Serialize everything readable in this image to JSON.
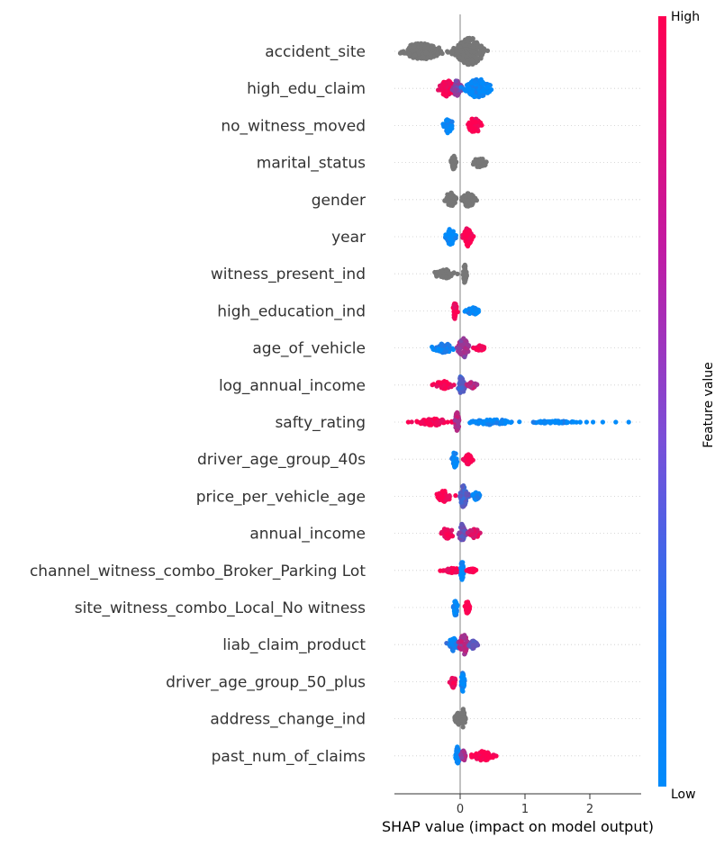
{
  "chart_data": {
    "type": "scatter",
    "subtype": "shap-beeswarm",
    "xlabel": "SHAP value (impact on model output)",
    "xticks": [
      0,
      1,
      2
    ],
    "xlim": [
      -1.0,
      2.8
    ],
    "colorbar": {
      "label": "Feature value",
      "high_label": "High",
      "low_label": "Low",
      "high_color": "#ff0052",
      "low_color": "#008bfb"
    },
    "neutral_color": "#777777",
    "features": [
      {
        "name": "accident_site",
        "colored": false,
        "clusters": [
          {
            "c": -0.6,
            "w": 0.5,
            "h": 0.6,
            "v": null
          },
          {
            "c": 0.15,
            "w": 0.35,
            "h": 1.0,
            "v": null
          }
        ]
      },
      {
        "name": "high_edu_claim",
        "colored": true,
        "clusters": [
          {
            "c": -0.2,
            "w": 0.18,
            "h": 0.6,
            "v": 1.0
          },
          {
            "c": -0.05,
            "w": 0.1,
            "h": 0.6,
            "v": 0.5
          },
          {
            "c": 0.28,
            "w": 0.3,
            "h": 0.7,
            "v": 0.0
          }
        ]
      },
      {
        "name": "no_witness_moved",
        "colored": true,
        "clusters": [
          {
            "c": -0.18,
            "w": 0.1,
            "h": 0.6,
            "v": 0.0
          },
          {
            "c": 0.22,
            "w": 0.15,
            "h": 0.6,
            "v": 1.0
          }
        ]
      },
      {
        "name": "marital_status",
        "colored": false,
        "clusters": [
          {
            "c": -0.1,
            "w": 0.06,
            "h": 0.5,
            "v": null
          },
          {
            "c": 0.3,
            "w": 0.18,
            "h": 0.35,
            "v": null
          }
        ]
      },
      {
        "name": "gender",
        "colored": false,
        "clusters": [
          {
            "c": -0.15,
            "w": 0.14,
            "h": 0.55,
            "v": null
          },
          {
            "c": 0.13,
            "w": 0.15,
            "h": 0.55,
            "v": null
          }
        ]
      },
      {
        "name": "year",
        "colored": true,
        "clusters": [
          {
            "c": -0.15,
            "w": 0.12,
            "h": 0.6,
            "v": 0.0
          },
          {
            "c": 0.12,
            "w": 0.1,
            "h": 0.7,
            "v": 1.0
          }
        ]
      },
      {
        "name": "witness_present_ind",
        "colored": false,
        "clusters": [
          {
            "c": -0.25,
            "w": 0.25,
            "h": 0.35,
            "v": null
          },
          {
            "c": 0.07,
            "w": 0.05,
            "h": 0.7,
            "v": null
          }
        ]
      },
      {
        "name": "high_education_ind",
        "colored": true,
        "clusters": [
          {
            "c": -0.08,
            "w": 0.05,
            "h": 0.6,
            "v": 1.0
          },
          {
            "c": 0.2,
            "w": 0.15,
            "h": 0.3,
            "v": 0.0
          }
        ]
      },
      {
        "name": "age_of_vehicle",
        "colored": true,
        "clusters": [
          {
            "c": -0.25,
            "w": 0.25,
            "h": 0.35,
            "v": 0.05
          },
          {
            "c": 0.05,
            "w": 0.12,
            "h": 0.8,
            "v": 0.6
          },
          {
            "c": 0.3,
            "w": 0.12,
            "h": 0.2,
            "v": 0.95
          }
        ]
      },
      {
        "name": "log_annual_income",
        "colored": true,
        "clusters": [
          {
            "c": -0.25,
            "w": 0.2,
            "h": 0.35,
            "v": 1.0
          },
          {
            "c": 0.02,
            "w": 0.08,
            "h": 0.7,
            "v": 0.3
          },
          {
            "c": 0.18,
            "w": 0.1,
            "h": 0.25,
            "v": 0.7
          }
        ]
      },
      {
        "name": "safty_rating",
        "colored": true,
        "clusters": [
          {
            "c": -0.4,
            "w": 0.38,
            "h": 0.25,
            "v": 1.0
          },
          {
            "c": -0.05,
            "w": 0.05,
            "h": 0.8,
            "v": 0.7
          },
          {
            "c": 0.5,
            "w": 0.5,
            "h": 0.2,
            "v": 0.0
          },
          {
            "c": 1.4,
            "w": 0.5,
            "h": 0.1,
            "v": 0.0
          }
        ]
      },
      {
        "name": "driver_age_group_40s",
        "colored": true,
        "clusters": [
          {
            "c": -0.08,
            "w": 0.05,
            "h": 0.7,
            "v": 0.0
          },
          {
            "c": 0.12,
            "w": 0.1,
            "h": 0.4,
            "v": 1.0
          }
        ]
      },
      {
        "name": "price_per_vehicle_age",
        "colored": true,
        "clusters": [
          {
            "c": -0.25,
            "w": 0.2,
            "h": 0.4,
            "v": 1.0
          },
          {
            "c": 0.05,
            "w": 0.1,
            "h": 0.8,
            "v": 0.3
          },
          {
            "c": 0.25,
            "w": 0.1,
            "h": 0.3,
            "v": 0.0
          }
        ]
      },
      {
        "name": "annual_income",
        "colored": true,
        "clusters": [
          {
            "c": -0.2,
            "w": 0.15,
            "h": 0.45,
            "v": 0.9
          },
          {
            "c": 0.03,
            "w": 0.08,
            "h": 0.7,
            "v": 0.4
          },
          {
            "c": 0.22,
            "w": 0.14,
            "h": 0.35,
            "v": 0.85
          }
        ]
      },
      {
        "name": "channel_witness_combo_Broker_Parking Lot",
        "colored": true,
        "clusters": [
          {
            "c": -0.12,
            "w": 0.2,
            "h": 0.2,
            "v": 1.0
          },
          {
            "c": 0.03,
            "w": 0.04,
            "h": 0.7,
            "v": 0.0
          },
          {
            "c": 0.18,
            "w": 0.1,
            "h": 0.15,
            "v": 1.0
          }
        ]
      },
      {
        "name": "site_witness_combo_Local_No witness",
        "colored": true,
        "clusters": [
          {
            "c": -0.07,
            "w": 0.04,
            "h": 0.7,
            "v": 0.0
          },
          {
            "c": 0.11,
            "w": 0.06,
            "h": 0.45,
            "v": 1.0
          }
        ]
      },
      {
        "name": "liab_claim_product",
        "colored": true,
        "clusters": [
          {
            "c": -0.1,
            "w": 0.15,
            "h": 0.5,
            "v": 0.1
          },
          {
            "c": 0.05,
            "w": 0.1,
            "h": 0.8,
            "v": 0.7
          },
          {
            "c": 0.2,
            "w": 0.1,
            "h": 0.3,
            "v": 0.4
          }
        ]
      },
      {
        "name": "driver_age_group_50_plus",
        "colored": true,
        "clusters": [
          {
            "c": -0.11,
            "w": 0.06,
            "h": 0.45,
            "v": 1.0
          },
          {
            "c": 0.04,
            "w": 0.04,
            "h": 0.75,
            "v": 0.0
          }
        ]
      },
      {
        "name": "address_change_ind",
        "colored": false,
        "clusters": [
          {
            "c": -0.03,
            "w": 0.08,
            "h": 0.45,
            "v": null
          },
          {
            "c": 0.05,
            "w": 0.05,
            "h": 0.75,
            "v": null
          }
        ]
      },
      {
        "name": "past_num_of_claims",
        "colored": true,
        "clusters": [
          {
            "c": -0.04,
            "w": 0.04,
            "h": 0.7,
            "v": 0.0
          },
          {
            "c": 0.05,
            "w": 0.05,
            "h": 0.4,
            "v": 0.6
          },
          {
            "c": 0.35,
            "w": 0.25,
            "h": 0.35,
            "v": 1.0
          }
        ]
      }
    ]
  }
}
